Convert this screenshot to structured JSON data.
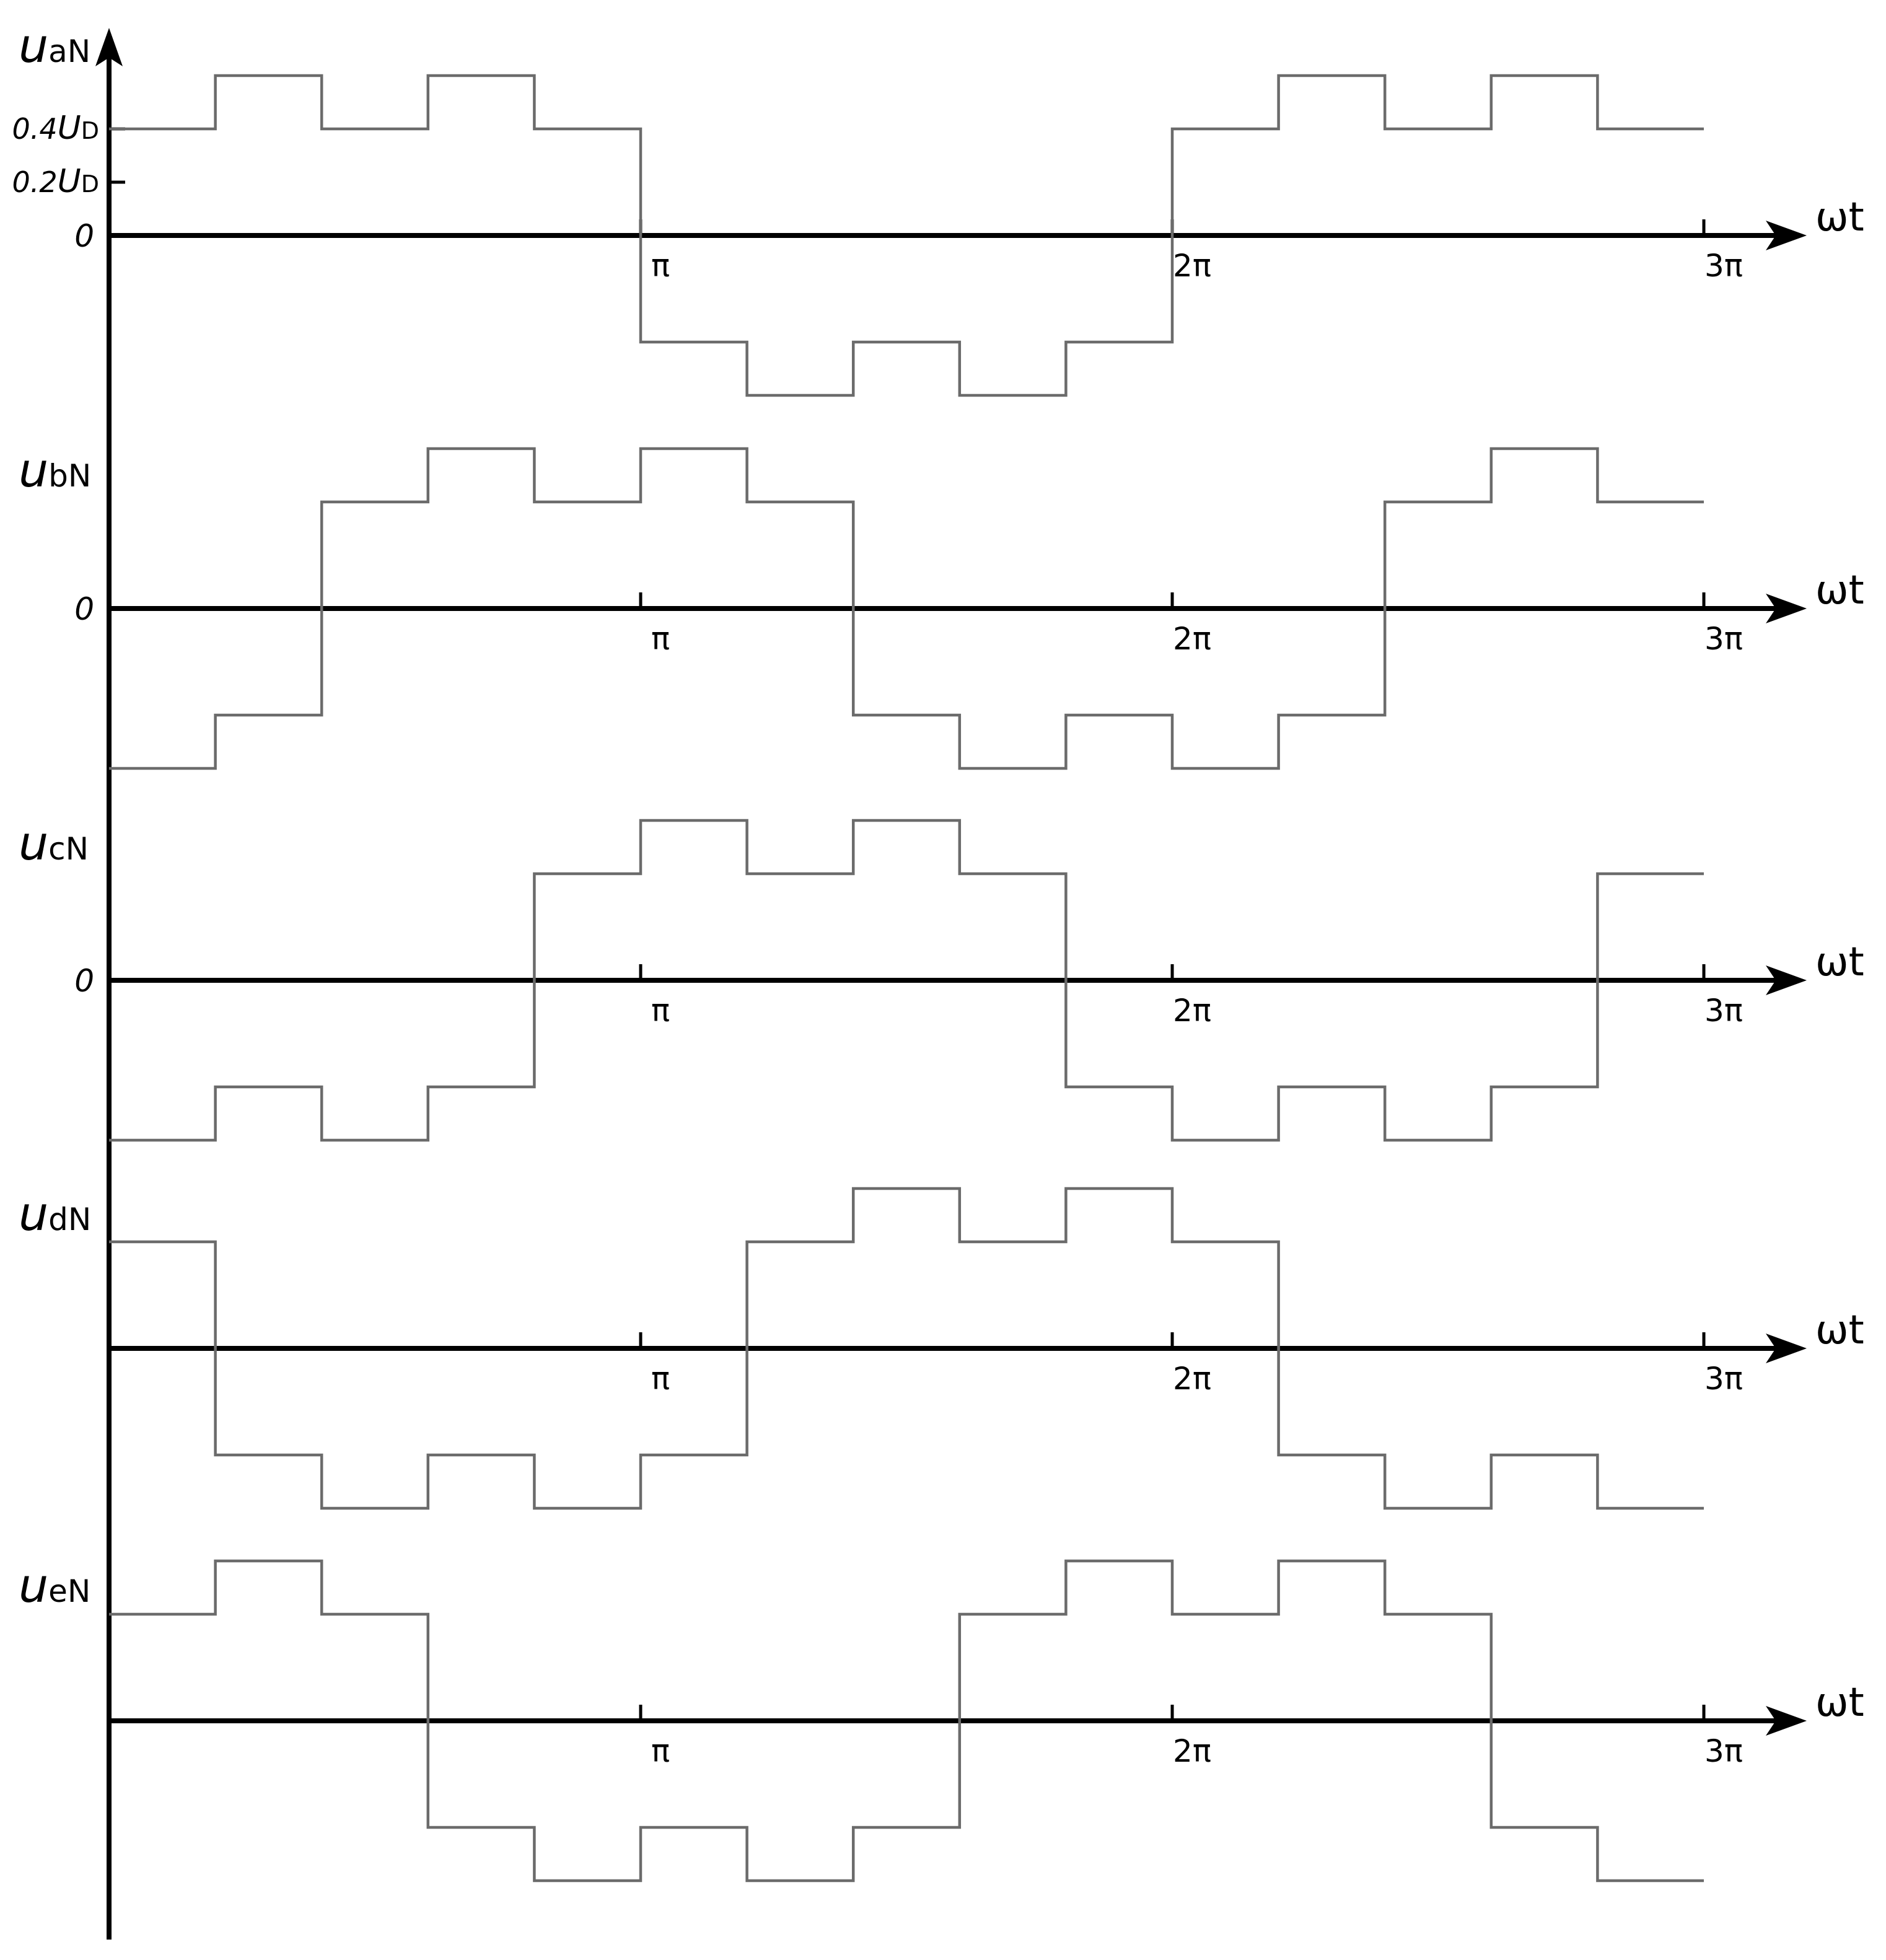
{
  "chart_data": {
    "type": "line",
    "step": true,
    "x_unit": "pi",
    "x_range": [
      0,
      3
    ],
    "x_axis_label": "ωt",
    "x_ticks": [
      {
        "value": 1,
        "label": "π"
      },
      {
        "value": 2,
        "label": "2π"
      },
      {
        "value": 3,
        "label": "3π"
      }
    ],
    "y_unit": "UD",
    "zero_label": "0",
    "y_ticks": [
      {
        "value": 0.4,
        "prefix": "0.4",
        "var": "U",
        "sub": "D"
      },
      {
        "value": 0.2,
        "prefix": "0.2",
        "var": "U",
        "sub": "D"
      }
    ],
    "x_breakpoints": [
      0,
      0.2,
      0.4,
      0.6,
      0.8,
      1.0,
      1.2,
      1.4,
      1.6,
      1.8,
      2.0,
      2.2,
      2.4,
      2.6,
      2.8,
      3.0
    ],
    "series": [
      {
        "var": "u",
        "sub": "aN",
        "show_zero": true,
        "values": [
          0.4,
          0.6,
          0.4,
          0.6,
          0.4,
          -0.4,
          -0.6,
          -0.4,
          -0.6,
          -0.4,
          0.4,
          0.6,
          0.4,
          0.6,
          0.4
        ]
      },
      {
        "var": "u",
        "sub": "bN",
        "show_zero": true,
        "values": [
          -0.6,
          -0.4,
          0.4,
          0.6,
          0.4,
          0.6,
          0.4,
          -0.4,
          -0.6,
          -0.4,
          -0.6,
          -0.4,
          0.4,
          0.6,
          0.4
        ]
      },
      {
        "var": "u",
        "sub": "cN",
        "show_zero": true,
        "values": [
          -0.6,
          -0.4,
          -0.6,
          -0.4,
          0.4,
          0.6,
          0.4,
          0.6,
          0.4,
          -0.4,
          -0.6,
          -0.4,
          -0.6,
          -0.4,
          0.4
        ]
      },
      {
        "var": "u",
        "sub": "dN",
        "show_zero": false,
        "values": [
          0.4,
          -0.4,
          -0.6,
          -0.4,
          -0.6,
          -0.4,
          0.4,
          0.6,
          0.4,
          0.6,
          0.4,
          -0.4,
          -0.6,
          -0.4,
          -0.6
        ]
      },
      {
        "var": "u",
        "sub": "eN",
        "show_zero": false,
        "values": [
          0.4,
          0.6,
          0.4,
          -0.4,
          -0.6,
          -0.4,
          -0.6,
          -0.4,
          0.4,
          0.6,
          0.4,
          0.6,
          0.4,
          -0.4,
          -0.6
        ]
      }
    ]
  }
}
